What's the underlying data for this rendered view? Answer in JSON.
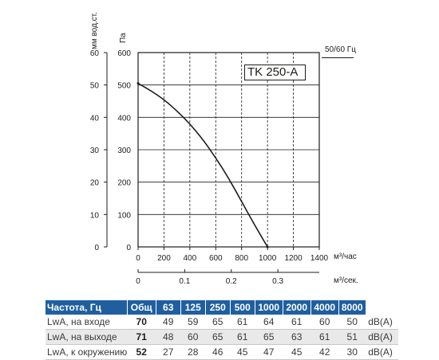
{
  "chart_data": {
    "type": "line",
    "model": "TK 250-A",
    "frequency": "50/60 Гц",
    "x_label": "м³/час",
    "x2_label": "м³/сек.",
    "y_label": "Па",
    "y2_label": "мм вод.ст.",
    "xlim": [
      0,
      1400
    ],
    "ylim": [
      0,
      600
    ],
    "x_ticks": [
      "0",
      "200",
      "400",
      "600",
      "800",
      "1000",
      "1200",
      "1400"
    ],
    "y_ticks": [
      "0",
      "100",
      "200",
      "300",
      "400",
      "500",
      "600"
    ],
    "x2_ticks": [
      "0",
      "0.1",
      "0.2",
      "0.3"
    ],
    "y2_ticks": [
      "0",
      "10",
      "20",
      "30",
      "40",
      "50",
      "60"
    ],
    "grid": true,
    "series": [
      {
        "x": [
          0,
          100,
          200,
          300,
          400,
          500,
          600,
          700,
          800,
          900,
          1000
        ],
        "y": [
          505,
          482,
          455,
          420,
          380,
          332,
          275,
          212,
          140,
          68,
          0
        ]
      }
    ]
  },
  "table": {
    "headers": [
      "Частота, Гц",
      "Общ",
      "63",
      "125",
      "250",
      "500",
      "1000",
      "2000",
      "4000",
      "8000"
    ],
    "rows": [
      {
        "name": "LwA, на входе",
        "total": "70",
        "values": [
          "49",
          "59",
          "65",
          "61",
          "64",
          "61",
          "60",
          "50"
        ],
        "unit": "dB(A)"
      },
      {
        "name": "LwA, на выходе",
        "total": "71",
        "values": [
          "48",
          "60",
          "65",
          "61",
          "65",
          "63",
          "61",
          "51"
        ],
        "unit": "dB(A)"
      },
      {
        "name": "LwA, к окружению",
        "total": "52",
        "values": [
          "27",
          "28",
          "46",
          "45",
          "47",
          "45",
          "42",
          "30"
        ],
        "unit": "dB(A)"
      }
    ]
  }
}
